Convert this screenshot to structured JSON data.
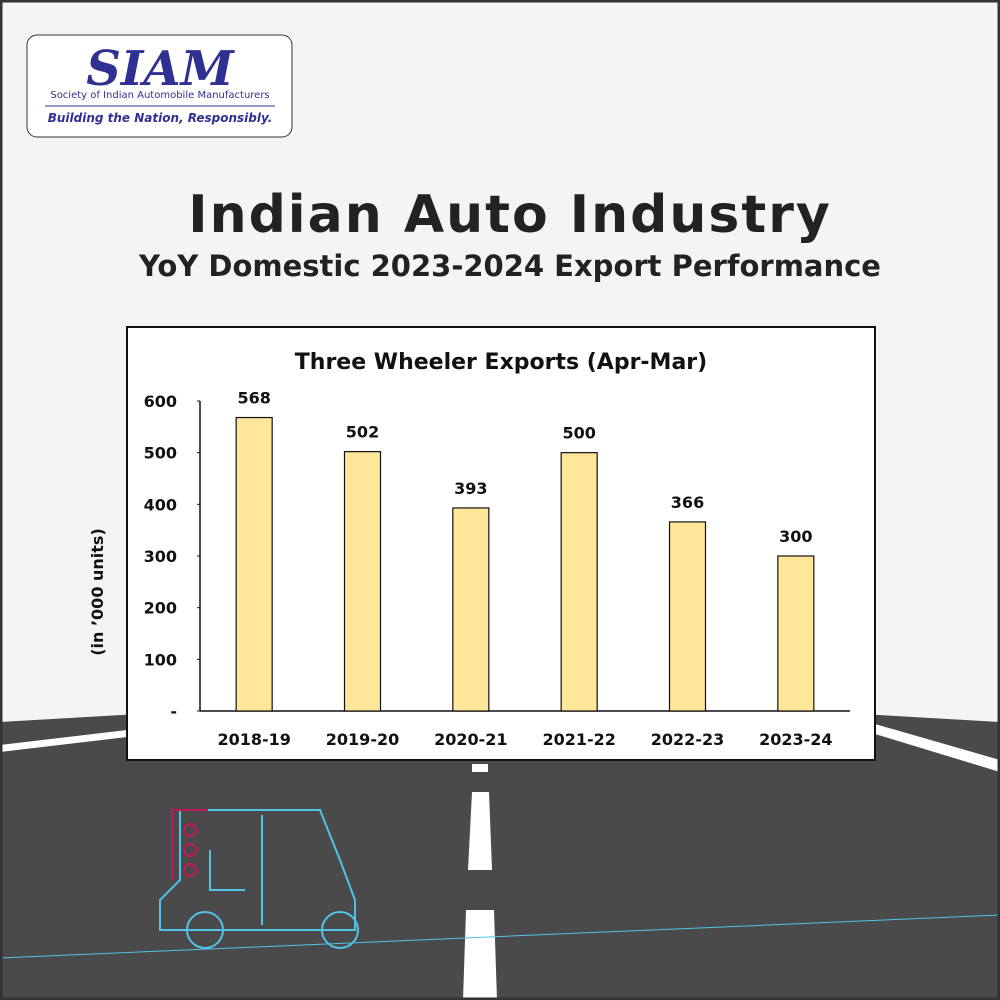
{
  "logo": {
    "name": "SIAM",
    "full_name": "Society of Indian Automobile Manufacturers",
    "tagline": "Building the Nation, Responsibly."
  },
  "header": {
    "title": "Indian Auto Industry",
    "subtitle": "YoY Domestic 2023-2024 Export Performance"
  },
  "chart_data": {
    "type": "bar",
    "title": "Three Wheeler Exports (Apr-Mar)",
    "y_label": "(in ’000 units)",
    "categories": [
      "2018-19",
      "2019-20",
      "2020-21",
      "2021-22",
      "2022-23",
      "2023-24"
    ],
    "values": [
      568,
      502,
      393,
      500,
      366,
      300
    ],
    "color": "#ffe699",
    "ylim": [
      0,
      600
    ],
    "yticks": [
      {
        "value": 0,
        "label": "-"
      },
      100,
      200,
      300,
      400,
      500,
      600
    ]
  }
}
